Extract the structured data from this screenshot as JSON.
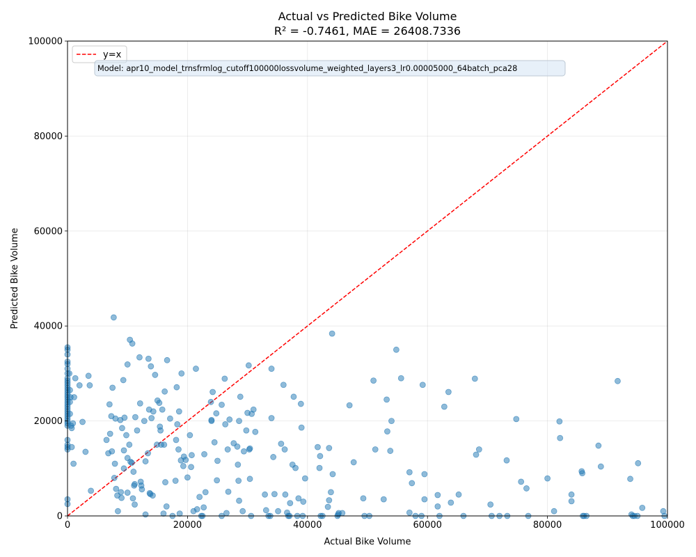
{
  "chart_data": {
    "type": "scatter",
    "title": "Actual vs Predicted Bike Volume",
    "subtitle": "R² = -0.7461, MAE = 26408.7336",
    "xlabel": "Actual Bike Volume",
    "ylabel": "Predicted Bike Volume",
    "xlim": [
      0,
      100000
    ],
    "ylim": [
      0,
      100000
    ],
    "xticks": [
      0,
      20000,
      40000,
      60000,
      80000,
      100000
    ],
    "yticks": [
      0,
      20000,
      40000,
      60000,
      80000,
      100000
    ],
    "xtick_labels": [
      "0",
      "20000",
      "40000",
      "60000",
      "80000",
      "100000"
    ],
    "ytick_labels": [
      "0",
      "20000",
      "40000",
      "60000",
      "80000",
      "100000"
    ],
    "grid": true,
    "legend": {
      "placement": "top-left",
      "entries": [
        {
          "label": "y=x",
          "color": "#ff0000",
          "style": "dashed"
        }
      ]
    },
    "annotation": "Model: apr10_model_trnsfrmlog_cutoff100000lossvolume_weighted_layers3_lr0.00005000_64batch_pca28",
    "point_color": "#1f77b4",
    "reference_line": {
      "label": "y=x",
      "color": "#ff0000",
      "from": [
        0,
        0
      ],
      "to": [
        100000,
        100000
      ]
    },
    "series": [
      {
        "points": [
          [
            0,
            35500
          ],
          [
            0,
            35000
          ],
          [
            0,
            34000
          ],
          [
            0,
            32500
          ],
          [
            0,
            32000
          ],
          [
            0,
            31000
          ],
          [
            0,
            30000
          ],
          [
            0,
            29000
          ],
          [
            0,
            28500
          ],
          [
            0,
            28000
          ],
          [
            0,
            27500
          ],
          [
            0,
            27000
          ],
          [
            0,
            26500
          ],
          [
            0,
            26000
          ],
          [
            0,
            25500
          ],
          [
            0,
            25000
          ],
          [
            0,
            24500
          ],
          [
            0,
            24000
          ],
          [
            0,
            23500
          ],
          [
            0,
            23000
          ],
          [
            0,
            22500
          ],
          [
            0,
            22000
          ],
          [
            0,
            21500
          ],
          [
            0,
            21000
          ],
          [
            0,
            20500
          ],
          [
            0,
            20000
          ],
          [
            0,
            19500
          ],
          [
            0,
            19000
          ],
          [
            0,
            16000
          ],
          [
            0,
            15000
          ],
          [
            0,
            14500
          ],
          [
            0,
            14000
          ],
          [
            0,
            3500
          ],
          [
            0,
            2500
          ],
          [
            300,
            30000
          ],
          [
            400,
            26500
          ],
          [
            400,
            24000
          ],
          [
            400,
            21500
          ],
          [
            500,
            25000
          ],
          [
            600,
            19000
          ],
          [
            700,
            18500
          ],
          [
            700,
            14500
          ],
          [
            900,
            19500
          ],
          [
            1000,
            11000
          ],
          [
            1100,
            25000
          ],
          [
            1300,
            29000
          ],
          [
            2000,
            27500
          ],
          [
            2500,
            19800
          ],
          [
            3000,
            13500
          ],
          [
            3500,
            29500
          ],
          [
            3700,
            27500
          ],
          [
            3900,
            5300
          ],
          [
            6500,
            16000
          ],
          [
            6800,
            13200
          ],
          [
            7000,
            23500
          ],
          [
            7100,
            17300
          ],
          [
            7300,
            21000
          ],
          [
            7400,
            13600
          ],
          [
            7500,
            27000
          ],
          [
            7700,
            41800
          ],
          [
            7800,
            8000
          ],
          [
            7900,
            11000
          ],
          [
            8000,
            20500
          ],
          [
            8100,
            5700
          ],
          [
            8300,
            4300
          ],
          [
            8400,
            1000
          ],
          [
            8800,
            20200
          ],
          [
            8900,
            5000
          ],
          [
            9000,
            3800
          ],
          [
            9100,
            18500
          ],
          [
            9300,
            28600
          ],
          [
            9400,
            13800
          ],
          [
            9400,
            10000
          ],
          [
            9500,
            20700
          ],
          [
            9800,
            17000
          ],
          [
            10000,
            12200
          ],
          [
            10000,
            31900
          ],
          [
            10000,
            4900
          ],
          [
            10300,
            15000
          ],
          [
            10400,
            37100
          ],
          [
            10500,
            11400
          ],
          [
            10700,
            11200
          ],
          [
            10800,
            36300
          ],
          [
            10900,
            3700
          ],
          [
            11000,
            9300
          ],
          [
            11100,
            6400
          ],
          [
            11200,
            2400
          ],
          [
            11200,
            6700
          ],
          [
            11300,
            20800
          ],
          [
            11600,
            18000
          ],
          [
            12000,
            33400
          ],
          [
            12100,
            23700
          ],
          [
            12200,
            7200
          ],
          [
            12300,
            6400
          ],
          [
            12400,
            5600
          ],
          [
            12800,
            20000
          ],
          [
            13000,
            11500
          ],
          [
            13000,
            300
          ],
          [
            13400,
            13200
          ],
          [
            13500,
            33100
          ],
          [
            13600,
            22400
          ],
          [
            13700,
            4800
          ],
          [
            13800,
            4600
          ],
          [
            13900,
            31500
          ],
          [
            14000,
            20600
          ],
          [
            14200,
            4300
          ],
          [
            14300,
            22000
          ],
          [
            14600,
            29700
          ],
          [
            14900,
            15000
          ],
          [
            15000,
            24300
          ],
          [
            15300,
            23800
          ],
          [
            15400,
            18800
          ],
          [
            15500,
            18000
          ],
          [
            15600,
            15000
          ],
          [
            15800,
            22400
          ],
          [
            16000,
            500
          ],
          [
            16100,
            15000
          ],
          [
            16200,
            26200
          ],
          [
            16300,
            7100
          ],
          [
            16500,
            2000
          ],
          [
            16600,
            32800
          ],
          [
            17100,
            20500
          ],
          [
            17500,
            0
          ],
          [
            18000,
            7400
          ],
          [
            18100,
            16000
          ],
          [
            18200,
            27100
          ],
          [
            18300,
            19300
          ],
          [
            18500,
            14000
          ],
          [
            18600,
            22000
          ],
          [
            18700,
            500
          ],
          [
            18900,
            11700
          ],
          [
            19000,
            30000
          ],
          [
            19300,
            10500
          ],
          [
            19400,
            12500
          ],
          [
            19700,
            11800
          ],
          [
            20000,
            8100
          ],
          [
            20400,
            17000
          ],
          [
            20600,
            10300
          ],
          [
            20700,
            12800
          ],
          [
            21000,
            1000
          ],
          [
            21400,
            31000
          ],
          [
            21600,
            1400
          ],
          [
            22000,
            4000
          ],
          [
            22300,
            0
          ],
          [
            22500,
            0
          ],
          [
            22700,
            1800
          ],
          [
            22800,
            13000
          ],
          [
            23000,
            5000
          ],
          [
            23900,
            24000
          ],
          [
            24000,
            20200
          ],
          [
            24000,
            20000
          ],
          [
            24200,
            26100
          ],
          [
            24500,
            15500
          ],
          [
            24800,
            21600
          ],
          [
            24900,
            7500
          ],
          [
            25000,
            11600
          ],
          [
            25700,
            23400
          ],
          [
            25700,
            0
          ],
          [
            26200,
            28900
          ],
          [
            26300,
            19300
          ],
          [
            26500,
            600
          ],
          [
            26700,
            14000
          ],
          [
            26800,
            5100
          ],
          [
            27000,
            20300
          ],
          [
            27700,
            15300
          ],
          [
            28300,
            14600
          ],
          [
            28400,
            10800
          ],
          [
            28500,
            7400
          ],
          [
            28600,
            3200
          ],
          [
            28600,
            20000
          ],
          [
            28800,
            25100
          ],
          [
            29200,
            1000
          ],
          [
            29400,
            13600
          ],
          [
            29800,
            18000
          ],
          [
            30000,
            21700
          ],
          [
            30200,
            31700
          ],
          [
            30300,
            14000
          ],
          [
            30400,
            7800
          ],
          [
            30400,
            14200
          ],
          [
            30600,
            0
          ],
          [
            30700,
            21500
          ],
          [
            31000,
            22400
          ],
          [
            31300,
            17700
          ],
          [
            32900,
            4500
          ],
          [
            33100,
            1200
          ],
          [
            33500,
            0
          ],
          [
            33800,
            0
          ],
          [
            34000,
            31000
          ],
          [
            34000,
            20600
          ],
          [
            34300,
            12400
          ],
          [
            34500,
            4600
          ],
          [
            35100,
            1000
          ],
          [
            35600,
            15200
          ],
          [
            36000,
            27600
          ],
          [
            36200,
            14000
          ],
          [
            36300,
            4500
          ],
          [
            36600,
            700
          ],
          [
            36800,
            0
          ],
          [
            37000,
            0
          ],
          [
            37100,
            2700
          ],
          [
            37500,
            10800
          ],
          [
            37700,
            25100
          ],
          [
            38000,
            10100
          ],
          [
            38300,
            0
          ],
          [
            38500,
            3700
          ],
          [
            38900,
            23600
          ],
          [
            39000,
            18600
          ],
          [
            39200,
            0
          ],
          [
            39300,
            3000
          ],
          [
            39600,
            7900
          ],
          [
            41700,
            14500
          ],
          [
            42000,
            10100
          ],
          [
            42100,
            12600
          ],
          [
            42200,
            0
          ],
          [
            42500,
            0
          ],
          [
            43400,
            1900
          ],
          [
            43600,
            14300
          ],
          [
            43600,
            3300
          ],
          [
            43900,
            5000
          ],
          [
            44100,
            38400
          ],
          [
            44200,
            8800
          ],
          [
            45000,
            0
          ],
          [
            45100,
            300
          ],
          [
            45200,
            600
          ],
          [
            45800,
            600
          ],
          [
            47000,
            23300
          ],
          [
            47700,
            11300
          ],
          [
            49300,
            3700
          ],
          [
            49500,
            0
          ],
          [
            50300,
            0
          ],
          [
            51000,
            28500
          ],
          [
            51300,
            14000
          ],
          [
            52700,
            3500
          ],
          [
            53200,
            24500
          ],
          [
            53300,
            17800
          ],
          [
            53800,
            13700
          ],
          [
            54000,
            20000
          ],
          [
            54800,
            35000
          ],
          [
            55600,
            29000
          ],
          [
            57000,
            9200
          ],
          [
            57000,
            700
          ],
          [
            57400,
            6900
          ],
          [
            58000,
            0
          ],
          [
            59000,
            0
          ],
          [
            59200,
            27600
          ],
          [
            59500,
            8800
          ],
          [
            59500,
            3500
          ],
          [
            61700,
            4400
          ],
          [
            61700,
            2000
          ],
          [
            62000,
            0
          ],
          [
            62800,
            23000
          ],
          [
            63500,
            26100
          ],
          [
            63900,
            2800
          ],
          [
            65200,
            4500
          ],
          [
            66000,
            0
          ],
          [
            67900,
            28900
          ],
          [
            68100,
            12900
          ],
          [
            68600,
            14000
          ],
          [
            70500,
            2400
          ],
          [
            70700,
            0
          ],
          [
            72000,
            0
          ],
          [
            73200,
            11700
          ],
          [
            73300,
            0
          ],
          [
            74800,
            20400
          ],
          [
            75600,
            7200
          ],
          [
            76500,
            5800
          ],
          [
            76800,
            0
          ],
          [
            80000,
            7900
          ],
          [
            81100,
            1000
          ],
          [
            82000,
            19900
          ],
          [
            82100,
            16400
          ],
          [
            84000,
            4500
          ],
          [
            84000,
            3100
          ],
          [
            85700,
            9400
          ],
          [
            85800,
            9000
          ],
          [
            85900,
            0
          ],
          [
            86100,
            0
          ],
          [
            86500,
            0
          ],
          [
            88500,
            14800
          ],
          [
            88900,
            10400
          ],
          [
            91700,
            28400
          ],
          [
            93800,
            7800
          ],
          [
            94000,
            300
          ],
          [
            94200,
            0
          ],
          [
            94500,
            0
          ],
          [
            95000,
            0
          ],
          [
            95100,
            11100
          ],
          [
            95800,
            1700
          ],
          [
            99300,
            1000
          ],
          [
            99500,
            0
          ]
        ]
      }
    ]
  }
}
